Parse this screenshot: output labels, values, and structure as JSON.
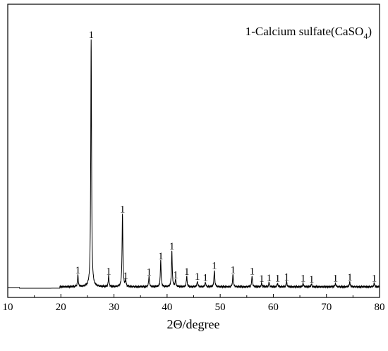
{
  "chart_data": {
    "type": "line",
    "title": "",
    "xlabel": "2Θ/degree",
    "ylabel": "",
    "xlim": [
      10,
      80
    ],
    "ylim": [
      0,
      100
    ],
    "x_ticks": [
      "10",
      "20",
      "30",
      "40",
      "50",
      "60",
      "70",
      "80"
    ],
    "y_ticks_shown": false,
    "grid": false,
    "legend": {
      "placement": "top-right",
      "text_prefix": "1-Calcium sulfate(CaSO",
      "subscript": "4",
      "text_suffix": ")"
    },
    "baseline": 0,
    "series": [
      {
        "peaks": [
          {
            "x": 23.2,
            "y": 4.8
          },
          {
            "x": 25.7,
            "y": 100
          },
          {
            "x": 29.0,
            "y": 4.4
          },
          {
            "x": 31.6,
            "y": 29.5
          },
          {
            "x": 32.2,
            "y": 2.6
          },
          {
            "x": 36.6,
            "y": 4.2
          },
          {
            "x": 38.8,
            "y": 10.5
          },
          {
            "x": 40.9,
            "y": 14.6
          },
          {
            "x": 41.6,
            "y": 3.0
          },
          {
            "x": 43.7,
            "y": 4.3
          },
          {
            "x": 45.7,
            "y": 2.3
          },
          {
            "x": 47.2,
            "y": 1.8
          },
          {
            "x": 48.9,
            "y": 6.7
          },
          {
            "x": 52.4,
            "y": 5.0
          },
          {
            "x": 56.0,
            "y": 4.4
          },
          {
            "x": 57.8,
            "y": 1.4
          },
          {
            "x": 59.2,
            "y": 1.7
          },
          {
            "x": 60.8,
            "y": 1.5
          },
          {
            "x": 62.5,
            "y": 2.2
          },
          {
            "x": 65.6,
            "y": 1.6
          },
          {
            "x": 67.2,
            "y": 1.1
          },
          {
            "x": 71.7,
            "y": 1.5
          },
          {
            "x": 74.4,
            "y": 2.0
          },
          {
            "x": 79.0,
            "y": 1.5
          }
        ]
      }
    ],
    "peak_labels": [
      {
        "x": 23.2,
        "y": 4.8,
        "text": "1"
      },
      {
        "x": 25.7,
        "y": 100,
        "text": "1"
      },
      {
        "x": 29.0,
        "y": 4.4,
        "text": "1"
      },
      {
        "x": 31.6,
        "y": 29.5,
        "text": "1"
      },
      {
        "x": 32.2,
        "y": 2.6,
        "text": "1"
      },
      {
        "x": 36.6,
        "y": 4.2,
        "text": "1"
      },
      {
        "x": 38.8,
        "y": 10.5,
        "text": "1"
      },
      {
        "x": 40.9,
        "y": 14.6,
        "text": "1"
      },
      {
        "x": 41.6,
        "y": 3.0,
        "text": "1"
      },
      {
        "x": 43.7,
        "y": 4.3,
        "text": "1"
      },
      {
        "x": 45.7,
        "y": 2.3,
        "text": "1"
      },
      {
        "x": 47.2,
        "y": 1.8,
        "text": "1"
      },
      {
        "x": 48.9,
        "y": 6.7,
        "text": "1"
      },
      {
        "x": 52.4,
        "y": 5.0,
        "text": "1"
      },
      {
        "x": 56.0,
        "y": 4.4,
        "text": "1"
      },
      {
        "x": 57.8,
        "y": 1.4,
        "text": "1"
      },
      {
        "x": 59.2,
        "y": 1.7,
        "text": "1"
      },
      {
        "x": 60.8,
        "y": 1.5,
        "text": "1"
      },
      {
        "x": 62.5,
        "y": 2.2,
        "text": "1"
      },
      {
        "x": 65.6,
        "y": 1.6,
        "text": "1"
      },
      {
        "x": 67.2,
        "y": 1.1,
        "text": "1"
      },
      {
        "x": 71.7,
        "y": 1.5,
        "text": "1"
      },
      {
        "x": 74.4,
        "y": 2.0,
        "text": "1"
      },
      {
        "x": 79.0,
        "y": 1.5,
        "text": "1"
      }
    ],
    "line_color": "#000000"
  }
}
